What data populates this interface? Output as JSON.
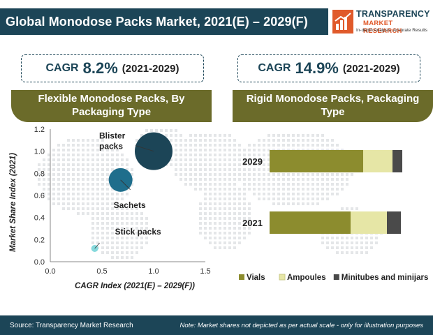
{
  "header": {
    "title": "Global Monodose Packs Market, 2021(E) – 2029(F)"
  },
  "logo": {
    "name": "TRANSPARENCY",
    "sub": "MARKET RESEARCH",
    "tagline": "In-depth Analysis. Accurate Results"
  },
  "left_panel": {
    "cagr_word": "CAGR",
    "cagr_value": "8.2%",
    "cagr_period": "(2021-2029)",
    "heading": "Flexible Monodose Packs, By Packaging Type"
  },
  "right_panel": {
    "cagr_word": "CAGR",
    "cagr_value": "14.9%",
    "cagr_period": "(2021-2029)",
    "heading": "Rigid Monodose Packs, Packaging Type"
  },
  "chart_data": [
    {
      "type": "scatter",
      "title": "",
      "xlabel": "CAGR Index (2021(E) – 2029(F))",
      "ylabel": "Market Share Index (2021)",
      "xlim": [
        0,
        1.5
      ],
      "ylim": [
        0,
        1.2
      ],
      "xticks": [
        "0.0",
        "0.5",
        "1.0",
        "1.5"
      ],
      "yticks": [
        "0.0",
        "0.2",
        "0.4",
        "0.6",
        "0.8",
        "1.0",
        "1.2"
      ],
      "grid": false,
      "points": [
        {
          "name": "Blister packs",
          "label_lines": [
            "Blister",
            "packs"
          ],
          "x": 1.0,
          "y": 1.0,
          "size": "large",
          "color": "#1c4557"
        },
        {
          "name": "Sachets",
          "label_lines": [
            "Sachets"
          ],
          "x": 0.68,
          "y": 0.74,
          "size": "medium",
          "color": "#1f6e8c"
        },
        {
          "name": "Stick packs",
          "label_lines": [
            "Stick packs"
          ],
          "x": 0.43,
          "y": 0.12,
          "size": "small",
          "color": "#86d9dc"
        }
      ]
    },
    {
      "type": "bar",
      "orientation": "horizontal",
      "stacked": true,
      "title": "",
      "categories": [
        "2029",
        "2021"
      ],
      "series": [
        {
          "name": "Vials",
          "values": [
            67,
            58
          ],
          "color": "#8c8c2e"
        },
        {
          "name": "Ampoules",
          "values": [
            21,
            26
          ],
          "color": "#e6e6a6"
        },
        {
          "name": "Minitubes and minijars",
          "values": [
            7,
            10
          ],
          "color": "#4a4a4a"
        }
      ],
      "legend_position": "bottom",
      "grid": false
    }
  ],
  "footer": {
    "source": "Source: Transparency Market Research",
    "note": "Note: Market shares not depicted as per actual scale - only for illustration purposes"
  }
}
